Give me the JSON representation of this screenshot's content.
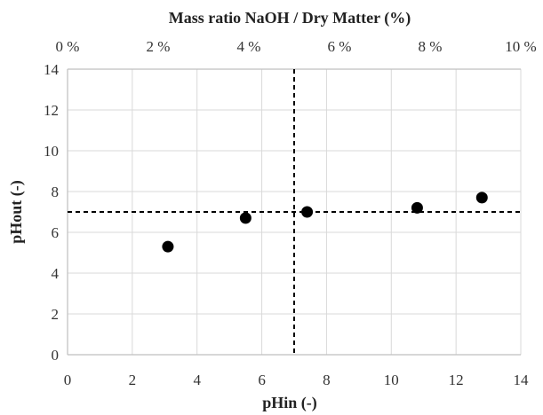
{
  "chart_data": {
    "type": "scatter",
    "title": "",
    "xlabel": "pHin (-)",
    "ylabel": "pHout (-)",
    "x2label": "Mass ratio NaOH / Dry Matter (%)",
    "xlim": [
      0,
      14
    ],
    "ylim": [
      0,
      14
    ],
    "x2lim": [
      0,
      10
    ],
    "x_ticks": [
      "0",
      "2",
      "4",
      "6",
      "8",
      "10",
      "12",
      "14"
    ],
    "y_ticks": [
      "0",
      "2",
      "4",
      "6",
      "8",
      "10",
      "12",
      "14"
    ],
    "x2_ticks": [
      "0 %",
      "2 %",
      "4 %",
      "6 %",
      "8 %",
      "10 %"
    ],
    "grid": true,
    "points": [
      {
        "x": 3.1,
        "y": 5.3
      },
      {
        "x": 5.5,
        "y": 6.7
      },
      {
        "x": 7.4,
        "y": 7.0
      },
      {
        "x": 10.8,
        "y": 7.2
      },
      {
        "x": 12.8,
        "y": 7.7
      }
    ],
    "reference_lines": [
      {
        "orientation": "vertical",
        "x": 7
      },
      {
        "orientation": "horizontal",
        "y": 7
      }
    ],
    "colors": {
      "marker": "#000000",
      "grid": "#d9d9d9",
      "axis": "#bfbfbf",
      "reference": "#000000"
    }
  }
}
